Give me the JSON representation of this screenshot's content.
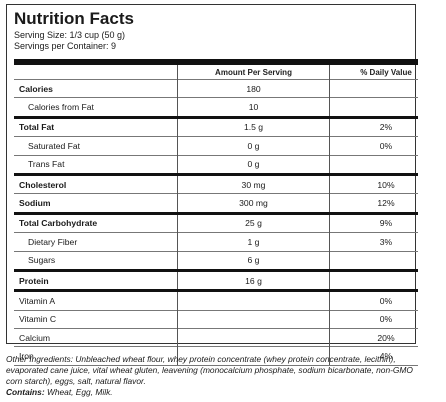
{
  "header": {
    "title": "Nutrition Facts",
    "serving_size": "Serving Size: 1/3 cup (50 g)",
    "servings_per_container": "Servings per Container: 9"
  },
  "columns": {
    "amount": "Amount Per Serving",
    "daily": "% Daily Value"
  },
  "rows": [
    {
      "name": "Calories",
      "amount": "180",
      "daily": ""
    },
    {
      "name": "Calories from Fat",
      "amount": "10",
      "daily": ""
    },
    {
      "name": "Total Fat",
      "amount": "1.5 g",
      "daily": "2%"
    },
    {
      "name": "Saturated Fat",
      "amount": "0 g",
      "daily": "0%"
    },
    {
      "name": "Trans Fat",
      "amount": "0 g",
      "daily": ""
    },
    {
      "name": "Cholesterol",
      "amount": "30 mg",
      "daily": "10%"
    },
    {
      "name": "Sodium",
      "amount": "300 mg",
      "daily": "12%"
    },
    {
      "name": "Total Carbohydrate",
      "amount": "25 g",
      "daily": "9%"
    },
    {
      "name": "Dietary Fiber",
      "amount": "1 g",
      "daily": "3%"
    },
    {
      "name": "Sugars",
      "amount": "6 g",
      "daily": ""
    },
    {
      "name": "Protein",
      "amount": "16 g",
      "daily": ""
    },
    {
      "name": "Vitamin A",
      "amount": "",
      "daily": "0%"
    },
    {
      "name": "Vitamin C",
      "amount": "",
      "daily": "0%"
    },
    {
      "name": "Calcium",
      "amount": "",
      "daily": "20%"
    },
    {
      "name": "Iron",
      "amount": "",
      "daily": "4%"
    }
  ],
  "footer": {
    "ingredients_text": "Other Ingredients: Unbleached wheat flour, whey protein concentrate (whey protein concentrate, lecithin), evaporated cane juice, vital wheat gluten, leavening (monocalcium phosphate, sodium bicarbonate, non-GMO corn starch), eggs, salt, natural flavor.",
    "contains_label": "Contains:",
    "contains_text": " Wheat, Egg, Milk."
  }
}
